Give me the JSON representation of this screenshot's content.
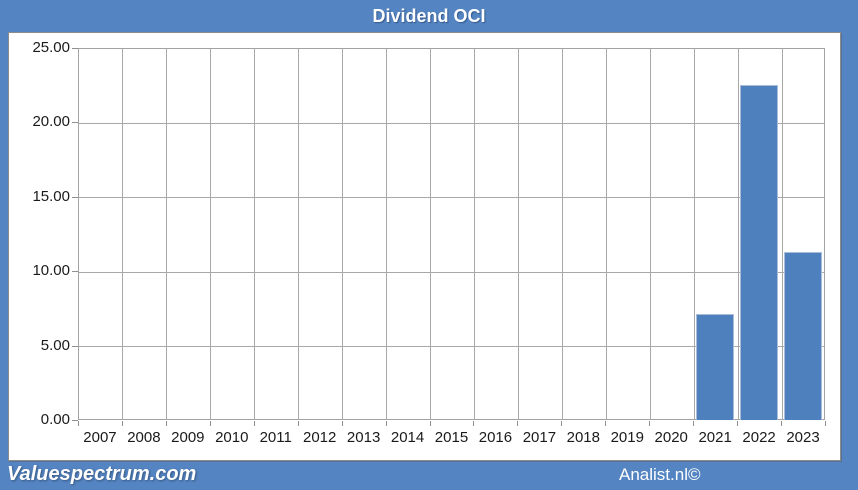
{
  "window": {
    "frame_color": "#5484c2"
  },
  "header": {
    "title": "Dividend OCI"
  },
  "footer": {
    "left_brand": "Valuespectrum.com",
    "right_brand": "Analist.nl©"
  },
  "chart_data": {
    "type": "bar",
    "title": "Dividend OCI",
    "categories": [
      "2007",
      "2008",
      "2009",
      "2010",
      "2011",
      "2012",
      "2013",
      "2014",
      "2015",
      "2016",
      "2017",
      "2018",
      "2019",
      "2020",
      "2021",
      "2022",
      "2023"
    ],
    "values": [
      0,
      0,
      0,
      0,
      0,
      0,
      0,
      0,
      0,
      0,
      0,
      0,
      0,
      0,
      7.1,
      22.5,
      11.3
    ],
    "xlabel": "",
    "ylabel": "",
    "ylim": [
      0,
      25
    ],
    "y_ticks": [
      0,
      5,
      10,
      15,
      20,
      25
    ],
    "y_tick_labels": [
      "0.00",
      "5.00",
      "10.00",
      "15.00",
      "20.00",
      "25.00"
    ],
    "grid": "both",
    "legend_position": "none",
    "bar_color": "#4d80bd",
    "gridline_color": "#a8a8a8"
  }
}
